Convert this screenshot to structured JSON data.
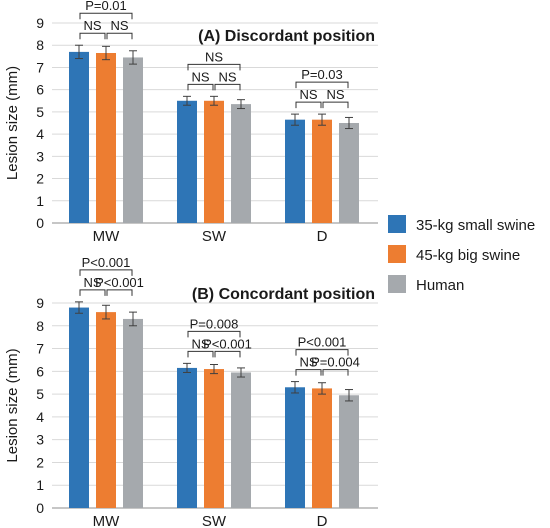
{
  "chart_data": [
    {
      "type": "bar",
      "title": "(A) Discordant position",
      "ylabel": "Lesion size (mm)",
      "ylim": [
        0,
        9
      ],
      "yticks": [
        0,
        1,
        2,
        3,
        4,
        5,
        6,
        7,
        8,
        9
      ],
      "grid": true,
      "categories": [
        "MW",
        "SW",
        "D"
      ],
      "series": [
        {
          "name": "35-kg small swine",
          "values": [
            7.7,
            5.5,
            4.65
          ],
          "errors": [
            0.3,
            0.2,
            0.25
          ]
        },
        {
          "name": "45-kg big swine",
          "values": [
            7.65,
            5.5,
            4.65
          ],
          "errors": [
            0.3,
            0.2,
            0.25
          ]
        },
        {
          "name": "Human",
          "values": [
            7.45,
            5.35,
            4.5
          ],
          "errors": [
            0.3,
            0.2,
            0.25
          ]
        }
      ],
      "annotations": [
        {
          "category": "MW",
          "text": "P=0.01",
          "from_series": 0,
          "to_series": 2,
          "level": 2
        },
        {
          "category": "MW",
          "text": "NS",
          "from_series": 0,
          "to_series": 1,
          "level": 1
        },
        {
          "category": "MW",
          "text": "NS",
          "from_series": 1,
          "to_series": 2,
          "level": 1
        },
        {
          "category": "SW",
          "text": "NS",
          "from_series": 0,
          "to_series": 2,
          "level": 2
        },
        {
          "category": "SW",
          "text": "NS",
          "from_series": 0,
          "to_series": 1,
          "level": 1
        },
        {
          "category": "SW",
          "text": "NS",
          "from_series": 1,
          "to_series": 2,
          "level": 1
        },
        {
          "category": "D",
          "text": "P=0.03",
          "from_series": 0,
          "to_series": 2,
          "level": 2
        },
        {
          "category": "D",
          "text": "NS",
          "from_series": 0,
          "to_series": 1,
          "level": 1
        },
        {
          "category": "D",
          "text": "NS",
          "from_series": 1,
          "to_series": 2,
          "level": 1
        }
      ]
    },
    {
      "type": "bar",
      "title": "(B) Concordant position",
      "ylabel": "Lesion size (mm)",
      "ylim": [
        0,
        9
      ],
      "yticks": [
        0,
        1,
        2,
        3,
        4,
        5,
        6,
        7,
        8,
        9
      ],
      "grid": true,
      "categories": [
        "MW",
        "SW",
        "D"
      ],
      "series": [
        {
          "name": "35-kg small swine",
          "values": [
            8.8,
            6.15,
            5.3
          ],
          "errors": [
            0.25,
            0.2,
            0.25
          ]
        },
        {
          "name": "45-kg big swine",
          "values": [
            8.6,
            6.1,
            5.25
          ],
          "errors": [
            0.3,
            0.2,
            0.25
          ]
        },
        {
          "name": "Human",
          "values": [
            8.3,
            5.95,
            4.95
          ],
          "errors": [
            0.3,
            0.2,
            0.25
          ]
        }
      ],
      "annotations": [
        {
          "category": "MW",
          "text": "P<0.001",
          "from_series": 0,
          "to_series": 2,
          "level": 2
        },
        {
          "category": "MW",
          "text": "NS",
          "from_series": 0,
          "to_series": 1,
          "level": 1
        },
        {
          "category": "MW",
          "text": "P<0.001",
          "from_series": 1,
          "to_series": 2,
          "level": 1
        },
        {
          "category": "SW",
          "text": "P=0.008",
          "from_series": 0,
          "to_series": 2,
          "level": 2
        },
        {
          "category": "SW",
          "text": "NS",
          "from_series": 0,
          "to_series": 1,
          "level": 1
        },
        {
          "category": "SW",
          "text": "P<0.001",
          "from_series": 1,
          "to_series": 2,
          "level": 1
        },
        {
          "category": "D",
          "text": "P<0.001",
          "from_series": 0,
          "to_series": 2,
          "level": 2
        },
        {
          "category": "D",
          "text": "NS",
          "from_series": 0,
          "to_series": 1,
          "level": 1
        },
        {
          "category": "D",
          "text": "P=0.004",
          "from_series": 1,
          "to_series": 2,
          "level": 1
        }
      ]
    }
  ],
  "legend": {
    "placement": "right",
    "items": [
      {
        "label": "35-kg small swine",
        "color": "#2e75b6"
      },
      {
        "label": "45-kg big swine",
        "color": "#ed7d31"
      },
      {
        "label": "Human",
        "color": "#a5a9ad"
      }
    ]
  },
  "colors": {
    "series": [
      "#2e75b6",
      "#ed7d31",
      "#a5a9ad"
    ],
    "grid": "#d9d9d9",
    "axis": "#8c8c8c",
    "error_bar": "#404040",
    "bracket": "#333333"
  }
}
